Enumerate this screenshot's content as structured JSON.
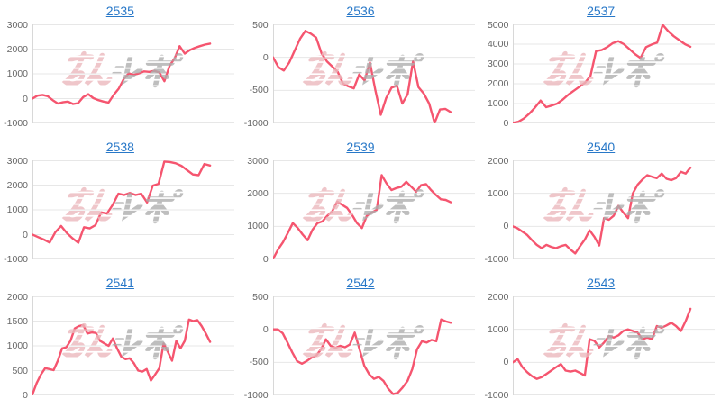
{
  "page": {
    "background": "#ffffff"
  },
  "style": {
    "line_color": "#f5556f",
    "link_color": "#2878c8",
    "grid_color": "#e7e7e7",
    "axis_color": "#d8d8d8",
    "tick_color": "#666666",
    "watermark_pink": "#ecb9bd",
    "watermark_gray": "#aeaeae"
  },
  "watermark": {
    "text": "みんレポ",
    "text_pink": "みん",
    "text_gray": "レポ"
  },
  "chart_data": [
    {
      "type": "line",
      "title": "2535",
      "ylim": [
        -1000,
        3000
      ],
      "yticks": [
        3000,
        2000,
        1000,
        0,
        -1000
      ],
      "grid": true,
      "values": [
        0,
        120,
        150,
        100,
        -60,
        -200,
        -150,
        -120,
        -220,
        -180,
        60,
        180,
        20,
        -60,
        -120,
        -160,
        150,
        400,
        800,
        1020,
        960,
        1020,
        1100,
        1080,
        1120,
        1060,
        700,
        1320,
        1620,
        2120,
        1820,
        1960,
        2050,
        2120,
        2180,
        2220
      ]
    },
    {
      "type": "line",
      "title": "2536",
      "ylim": [
        -1000,
        500
      ],
      "yticks": [
        500,
        0,
        -500,
        -1000
      ],
      "grid": true,
      "values": [
        0,
        -150,
        -200,
        -80,
        100,
        280,
        400,
        360,
        300,
        60,
        -60,
        -140,
        -220,
        -400,
        -440,
        -470,
        -260,
        -350,
        -80,
        -500,
        -870,
        -620,
        -460,
        -430,
        -700,
        -560,
        -60,
        -450,
        -550,
        -700,
        -1000,
        -790,
        -780,
        -830
      ]
    },
    {
      "type": "line",
      "title": "2537",
      "ylim": [
        0,
        5000
      ],
      "yticks": [
        5000,
        4000,
        3000,
        2000,
        1000,
        0
      ],
      "grid": true,
      "values": [
        30,
        80,
        250,
        500,
        800,
        1150,
        820,
        900,
        1000,
        1200,
        1450,
        1650,
        1850,
        2050,
        2400,
        3650,
        3700,
        3850,
        4050,
        4150,
        4000,
        3750,
        3500,
        3300,
        3850,
        3980,
        4080,
        4980,
        4650,
        4400,
        4200,
        4000,
        3870
      ]
    },
    {
      "type": "line",
      "title": "2538",
      "ylim": [
        -1000,
        3000
      ],
      "yticks": [
        3000,
        2000,
        1000,
        0,
        -1000
      ],
      "grid": true,
      "values": [
        0,
        -100,
        -200,
        -320,
        100,
        350,
        60,
        -150,
        -330,
        300,
        250,
        380,
        900,
        850,
        1200,
        1650,
        1600,
        1680,
        1600,
        1650,
        1300,
        1980,
        2050,
        2950,
        2930,
        2880,
        2780,
        2600,
        2430,
        2400,
        2850,
        2790
      ]
    },
    {
      "type": "line",
      "title": "2539",
      "ylim": [
        0,
        3000
      ],
      "yticks": [
        3000,
        2000,
        1000,
        0
      ],
      "grid": true,
      "values": [
        0,
        300,
        520,
        800,
        1100,
        950,
        750,
        580,
        900,
        1100,
        1150,
        1320,
        1460,
        1750,
        1650,
        1560,
        1350,
        1100,
        950,
        1320,
        1420,
        1500,
        2550,
        2300,
        2100,
        2160,
        2200,
        2350,
        2200,
        2050,
        2250,
        2280,
        2100,
        1950,
        1820,
        1800,
        1730
      ]
    },
    {
      "type": "line",
      "title": "2540",
      "ylim": [
        -1000,
        2000
      ],
      "yticks": [
        2000,
        1000,
        0,
        -1000
      ],
      "grid": true,
      "values": [
        0,
        -60,
        -160,
        -260,
        -420,
        -560,
        -660,
        -560,
        -620,
        -660,
        -600,
        -560,
        -700,
        -820,
        -600,
        -400,
        -120,
        -320,
        -580,
        250,
        200,
        320,
        620,
        420,
        250,
        1000,
        1260,
        1420,
        1550,
        1500,
        1460,
        1600,
        1440,
        1400,
        1460,
        1650,
        1600,
        1780
      ]
    },
    {
      "type": "line",
      "title": "2541",
      "ylim": [
        0,
        2000
      ],
      "yticks": [
        2000,
        1500,
        1000,
        500,
        0
      ],
      "grid": true,
      "values": [
        20,
        250,
        420,
        550,
        530,
        510,
        700,
        950,
        970,
        1100,
        1350,
        1400,
        1420,
        1250,
        1270,
        1260,
        1100,
        1050,
        1000,
        1150,
        950,
        780,
        730,
        750,
        650,
        500,
        480,
        530,
        300,
        420,
        550,
        1050,
        880,
        700,
        1100,
        950,
        1100,
        1530,
        1500,
        1520,
        1400,
        1250,
        1080
      ]
    },
    {
      "type": "line",
      "title": "2542",
      "ylim": [
        -1000,
        500
      ],
      "yticks": [
        500,
        0,
        -500,
        -1000
      ],
      "grid": true,
      "values": [
        0,
        0,
        -60,
        -200,
        -350,
        -480,
        -520,
        -480,
        -430,
        -400,
        -300,
        -150,
        -250,
        -280,
        -250,
        -270,
        -230,
        -50,
        -300,
        -550,
        -680,
        -750,
        -720,
        -780,
        -900,
        -980,
        -960,
        -880,
        -780,
        -600,
        -300,
        -180,
        -200,
        -160,
        -180,
        150,
        120,
        100
      ]
    },
    {
      "type": "line",
      "title": "2543",
      "ylim": [
        -1000,
        2000
      ],
      "yticks": [
        2000,
        1000,
        0,
        -1000
      ],
      "grid": true,
      "values": [
        0,
        100,
        -150,
        -300,
        -420,
        -500,
        -450,
        -350,
        -250,
        -150,
        -50,
        -250,
        -280,
        -250,
        -320,
        -400,
        700,
        650,
        450,
        600,
        800,
        750,
        820,
        950,
        1000,
        950,
        900,
        700,
        750,
        700,
        1100,
        1050,
        1120,
        1200,
        1100,
        950,
        1250,
        1620
      ]
    }
  ]
}
